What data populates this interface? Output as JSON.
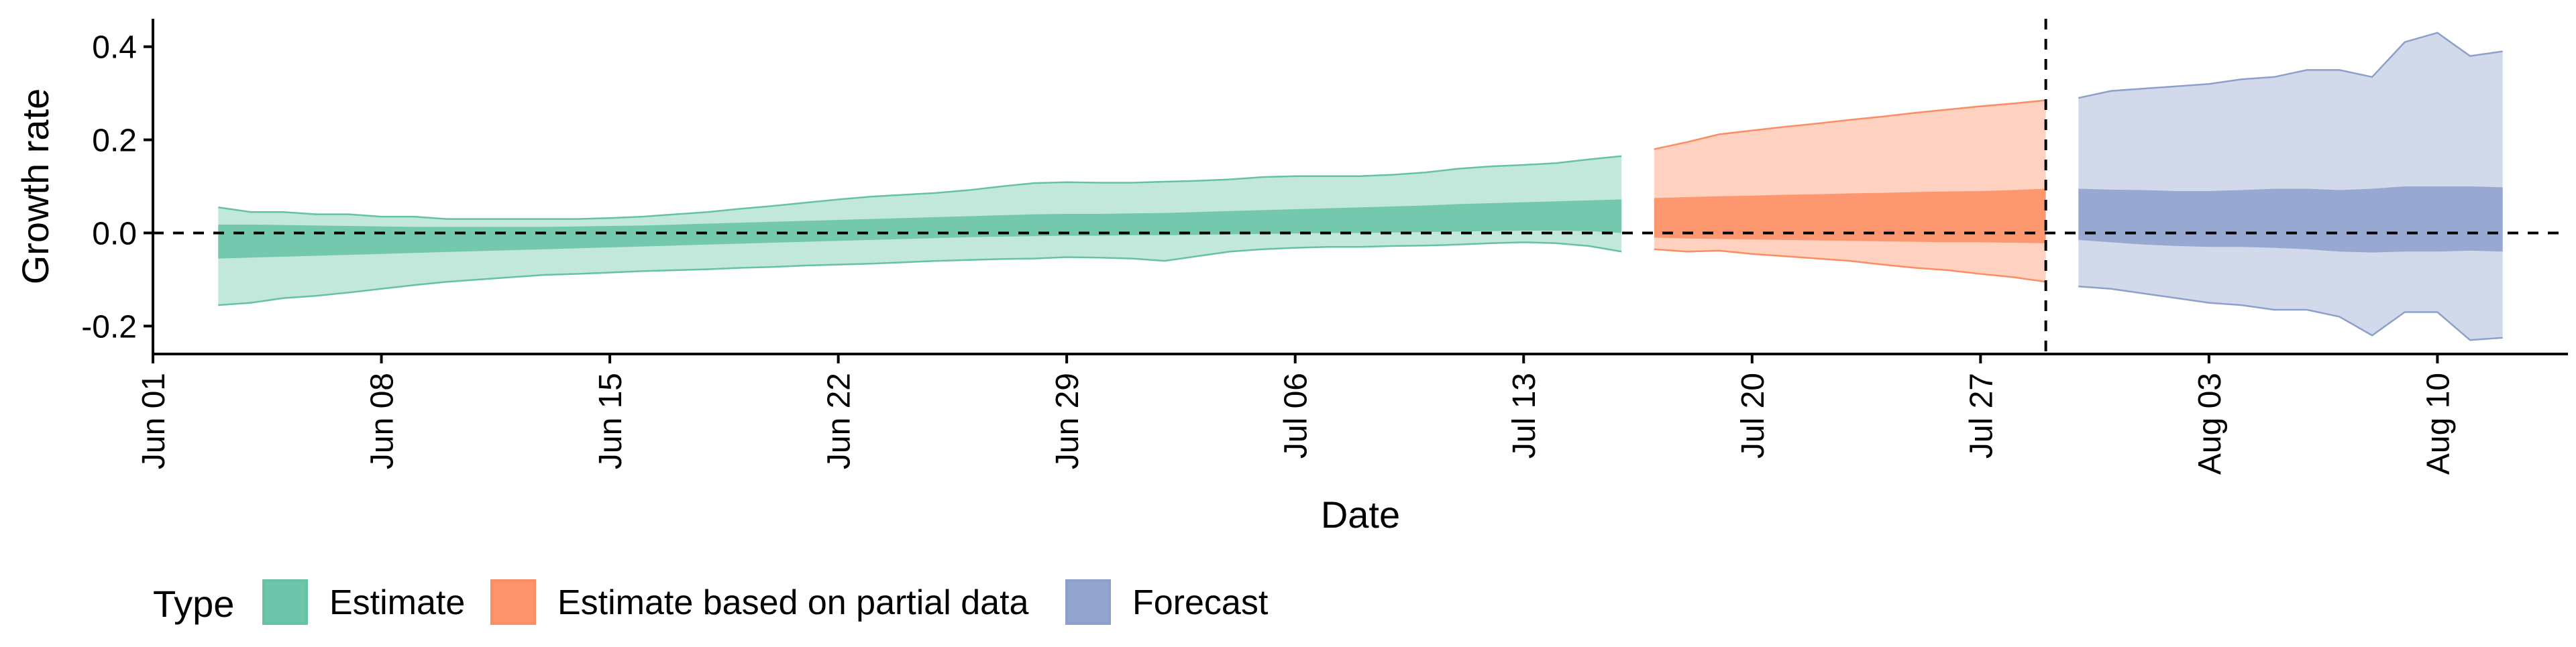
{
  "chart_data": {
    "type": "area",
    "title": "",
    "xlabel": "Date",
    "ylabel": "Growth rate",
    "x_type": "date",
    "xlim": [
      "2020-06-01",
      "2020-08-14"
    ],
    "ylim": [
      -0.26,
      0.46
    ],
    "x_ticks": [
      {
        "date": "2020-06-01",
        "label": "Jun 01"
      },
      {
        "date": "2020-06-08",
        "label": "Jun 08"
      },
      {
        "date": "2020-06-15",
        "label": "Jun 15"
      },
      {
        "date": "2020-06-22",
        "label": "Jun 22"
      },
      {
        "date": "2020-06-29",
        "label": "Jun 29"
      },
      {
        "date": "2020-07-06",
        "label": "Jul 06"
      },
      {
        "date": "2020-07-13",
        "label": "Jul 13"
      },
      {
        "date": "2020-07-20",
        "label": "Jul 20"
      },
      {
        "date": "2020-07-27",
        "label": "Jul 27"
      },
      {
        "date": "2020-08-03",
        "label": "Aug 03"
      },
      {
        "date": "2020-08-10",
        "label": "Aug 10"
      }
    ],
    "y_ticks": [
      {
        "value": -0.2,
        "label": "-0.2"
      },
      {
        "value": 0.0,
        "label": "0.0"
      },
      {
        "value": 0.2,
        "label": "0.2"
      },
      {
        "value": 0.4,
        "label": "0.4"
      }
    ],
    "reference_lines": [
      {
        "axis": "y",
        "value": 0.0,
        "style": "dashed"
      },
      {
        "axis": "x",
        "value": "2020-07-29",
        "style": "dashed"
      }
    ],
    "grid": false,
    "legend": {
      "title": "Type",
      "position": "bottom-left"
    },
    "series": [
      {
        "name": "Estimate",
        "color": "#66c2a5",
        "x": [
          "2020-06-03",
          "2020-06-04",
          "2020-06-05",
          "2020-06-06",
          "2020-06-07",
          "2020-06-08",
          "2020-06-09",
          "2020-06-10",
          "2020-06-11",
          "2020-06-12",
          "2020-06-13",
          "2020-06-14",
          "2020-06-15",
          "2020-06-16",
          "2020-06-17",
          "2020-06-18",
          "2020-06-19",
          "2020-06-20",
          "2020-06-21",
          "2020-06-22",
          "2020-06-23",
          "2020-06-24",
          "2020-06-25",
          "2020-06-26",
          "2020-06-27",
          "2020-06-28",
          "2020-06-29",
          "2020-06-30",
          "2020-07-01",
          "2020-07-02",
          "2020-07-03",
          "2020-07-04",
          "2020-07-05",
          "2020-07-06",
          "2020-07-07",
          "2020-07-08",
          "2020-07-09",
          "2020-07-10",
          "2020-07-11",
          "2020-07-12",
          "2020-07-13",
          "2020-07-14",
          "2020-07-15",
          "2020-07-16"
        ],
        "upper90": [
          0.055,
          0.045,
          0.045,
          0.04,
          0.04,
          0.035,
          0.035,
          0.03,
          0.03,
          0.03,
          0.03,
          0.03,
          0.032,
          0.035,
          0.04,
          0.045,
          0.052,
          0.058,
          0.065,
          0.072,
          0.078,
          0.082,
          0.086,
          0.092,
          0.1,
          0.107,
          0.109,
          0.108,
          0.108,
          0.11,
          0.112,
          0.115,
          0.12,
          0.122,
          0.122,
          0.122,
          0.125,
          0.13,
          0.138,
          0.143,
          0.146,
          0.15,
          0.158,
          0.165
        ],
        "lower90": [
          -0.155,
          -0.15,
          -0.14,
          -0.135,
          -0.128,
          -0.12,
          -0.112,
          -0.105,
          -0.1,
          -0.095,
          -0.09,
          -0.088,
          -0.085,
          -0.082,
          -0.08,
          -0.078,
          -0.075,
          -0.073,
          -0.07,
          -0.068,
          -0.066,
          -0.063,
          -0.06,
          -0.058,
          -0.056,
          -0.055,
          -0.052,
          -0.053,
          -0.055,
          -0.06,
          -0.05,
          -0.04,
          -0.035,
          -0.032,
          -0.03,
          -0.03,
          -0.028,
          -0.027,
          -0.025,
          -0.022,
          -0.02,
          -0.022,
          -0.028,
          -0.04
        ],
        "upper50": [
          0.018,
          0.018,
          0.017,
          0.016,
          0.015,
          0.014,
          0.013,
          0.013,
          0.013,
          0.013,
          0.013,
          0.014,
          0.015,
          0.016,
          0.018,
          0.02,
          0.022,
          0.024,
          0.026,
          0.028,
          0.03,
          0.032,
          0.034,
          0.036,
          0.038,
          0.04,
          0.041,
          0.041,
          0.042,
          0.043,
          0.045,
          0.047,
          0.049,
          0.051,
          0.053,
          0.055,
          0.057,
          0.059,
          0.062,
          0.064,
          0.066,
          0.068,
          0.07,
          0.072
        ],
        "lower50": [
          -0.055,
          -0.053,
          -0.051,
          -0.049,
          -0.047,
          -0.045,
          -0.043,
          -0.041,
          -0.039,
          -0.037,
          -0.035,
          -0.033,
          -0.031,
          -0.029,
          -0.027,
          -0.025,
          -0.023,
          -0.021,
          -0.019,
          -0.017,
          -0.015,
          -0.013,
          -0.011,
          -0.009,
          -0.008,
          -0.007,
          -0.006,
          -0.006,
          -0.005,
          -0.005,
          -0.004,
          -0.003,
          -0.002,
          -0.001,
          0.0,
          0.0,
          0.001,
          0.002,
          0.003,
          0.004,
          0.005,
          0.005,
          0.004,
          0.0
        ]
      },
      {
        "name": "Estimate based on partial data",
        "color": "#fc8d62",
        "x": [
          "2020-07-17",
          "2020-07-18",
          "2020-07-19",
          "2020-07-20",
          "2020-07-21",
          "2020-07-22",
          "2020-07-23",
          "2020-07-24",
          "2020-07-25",
          "2020-07-26",
          "2020-07-27",
          "2020-07-28",
          "2020-07-29"
        ],
        "upper90": [
          0.18,
          0.195,
          0.212,
          0.22,
          0.228,
          0.235,
          0.243,
          0.25,
          0.258,
          0.265,
          0.272,
          0.278,
          0.285
        ],
        "lower90": [
          -0.035,
          -0.04,
          -0.038,
          -0.045,
          -0.05,
          -0.055,
          -0.06,
          -0.068,
          -0.075,
          -0.08,
          -0.088,
          -0.095,
          -0.105
        ],
        "upper50": [
          0.075,
          0.077,
          0.079,
          0.08,
          0.082,
          0.083,
          0.085,
          0.086,
          0.088,
          0.089,
          0.09,
          0.092,
          0.095
        ],
        "lower50": [
          -0.01,
          -0.012,
          -0.013,
          -0.014,
          -0.015,
          -0.016,
          -0.017,
          -0.018,
          -0.019,
          -0.02,
          -0.02,
          -0.021,
          -0.022
        ]
      },
      {
        "name": "Forecast",
        "color": "#8da0cb",
        "x": [
          "2020-07-30",
          "2020-07-31",
          "2020-08-01",
          "2020-08-02",
          "2020-08-03",
          "2020-08-04",
          "2020-08-05",
          "2020-08-06",
          "2020-08-07",
          "2020-08-08",
          "2020-08-09",
          "2020-08-10",
          "2020-08-11",
          "2020-08-12"
        ],
        "upper90": [
          0.29,
          0.305,
          0.31,
          0.315,
          0.32,
          0.33,
          0.335,
          0.35,
          0.35,
          0.335,
          0.41,
          0.43,
          0.38,
          0.39
        ],
        "lower90": [
          -0.115,
          -0.12,
          -0.13,
          -0.14,
          -0.15,
          -0.155,
          -0.165,
          -0.165,
          -0.18,
          -0.22,
          -0.17,
          -0.17,
          -0.23,
          -0.225
        ],
        "upper50": [
          0.095,
          0.093,
          0.092,
          0.09,
          0.09,
          0.092,
          0.095,
          0.095,
          0.092,
          0.095,
          0.1,
          0.1,
          0.1,
          0.098
        ],
        "lower50": [
          -0.015,
          -0.02,
          -0.025,
          -0.028,
          -0.03,
          -0.03,
          -0.032,
          -0.035,
          -0.04,
          -0.042,
          -0.04,
          -0.04,
          -0.038,
          -0.04
        ]
      }
    ]
  }
}
